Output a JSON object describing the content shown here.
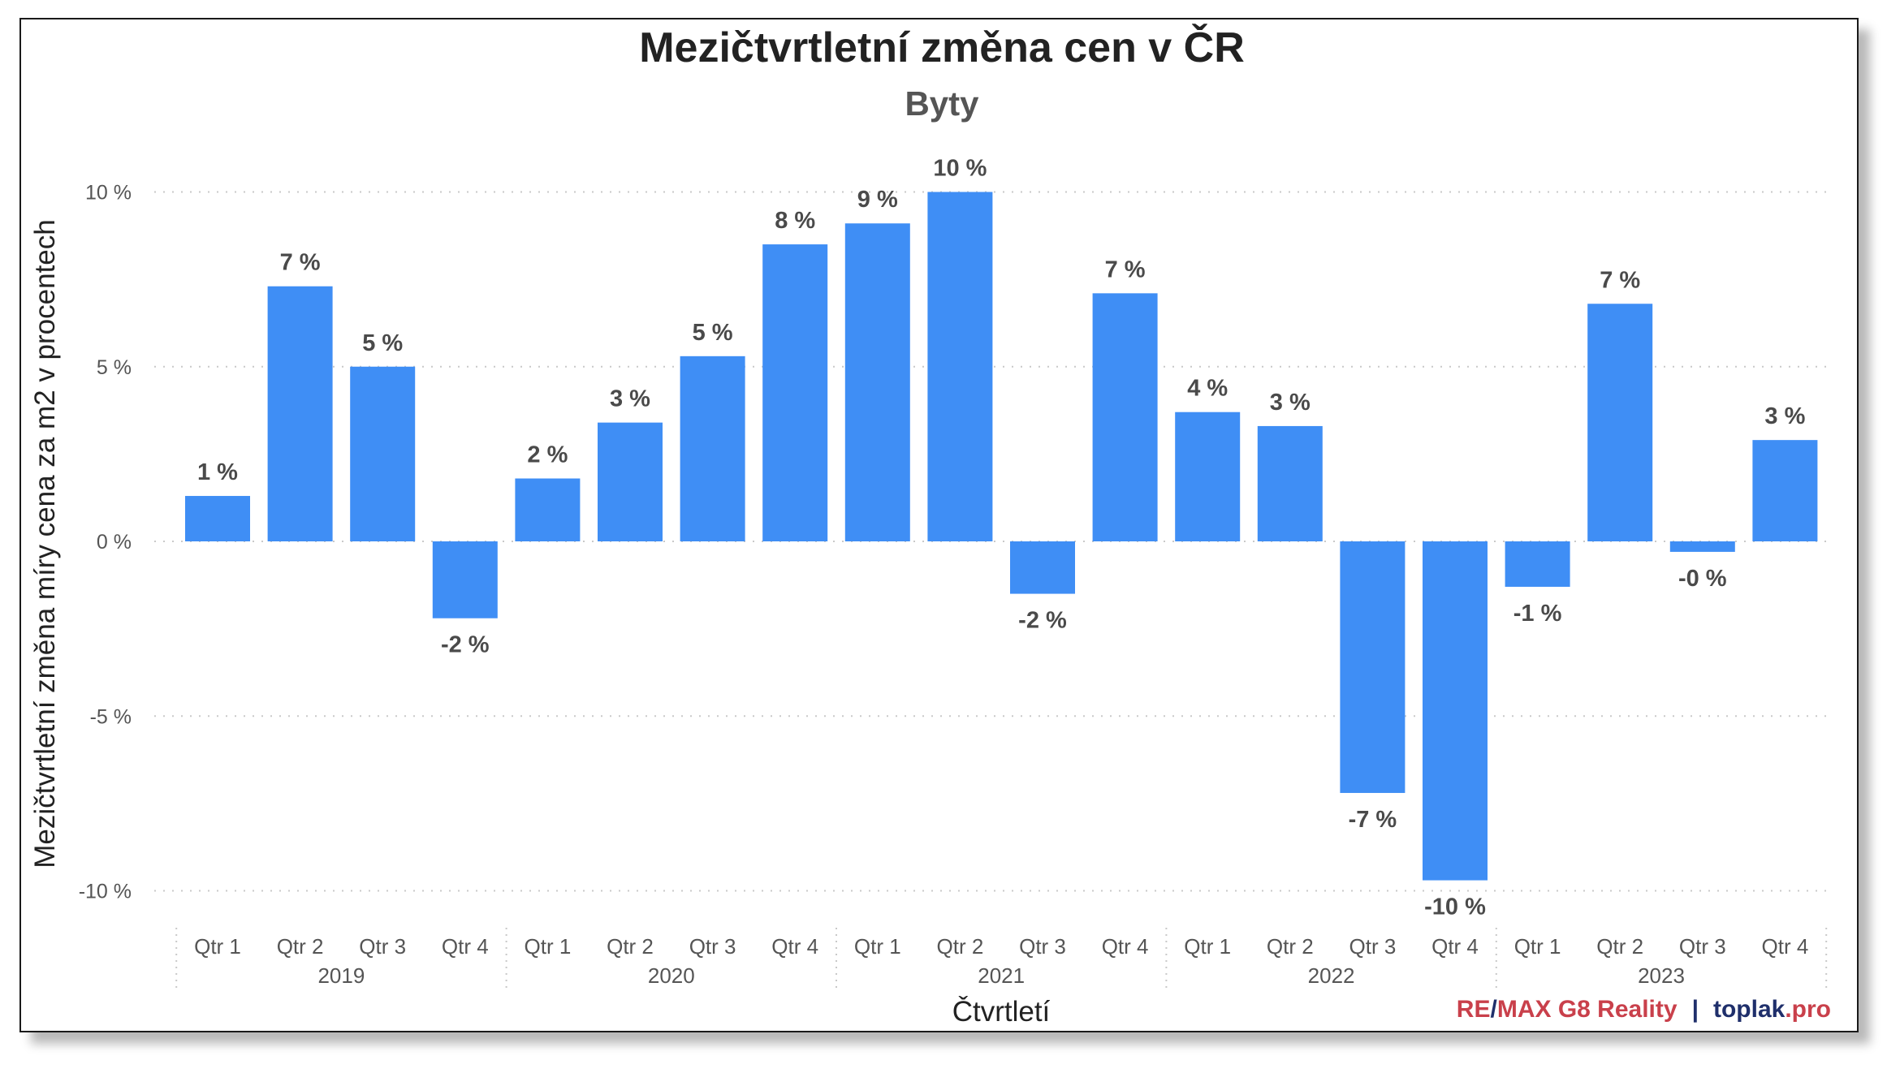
{
  "chart_data": {
    "type": "bar",
    "title": "Mezičtvrtletní změna cen v ČR",
    "subtitle": "Byty",
    "xlabel": "Čtvrtletí",
    "ylabel": "Mezičtvrtletní změna míry cena za m2 v procentech",
    "ylim": [
      -10,
      10
    ],
    "yticks": [
      10,
      5,
      0,
      -5,
      -10
    ],
    "ytick_labels": [
      "10 %",
      "5 %",
      "0 %",
      "-5 %",
      "-10 %"
    ],
    "years": [
      "2019",
      "2020",
      "2021",
      "2022",
      "2023"
    ],
    "categories": [
      "Qtr 1",
      "Qtr 2",
      "Qtr 3",
      "Qtr 4",
      "Qtr 1",
      "Qtr 2",
      "Qtr 3",
      "Qtr 4",
      "Qtr 1",
      "Qtr 2",
      "Qtr 3",
      "Qtr 4",
      "Qtr 1",
      "Qtr 2",
      "Qtr 3",
      "Qtr 4",
      "Qtr 1",
      "Qtr 2",
      "Qtr 3",
      "Qtr 4"
    ],
    "values": [
      1.3,
      7.3,
      5.0,
      -2.2,
      1.8,
      3.4,
      5.3,
      8.5,
      9.1,
      10.0,
      -1.5,
      7.1,
      3.7,
      3.3,
      -7.2,
      -9.7,
      -1.3,
      6.8,
      -0.3,
      2.9
    ],
    "data_labels": [
      "1 %",
      "7 %",
      "5 %",
      "-2 %",
      "2 %",
      "3 %",
      "5 %",
      "8 %",
      "9 %",
      "10 %",
      "-2 %",
      "7 %",
      "4 %",
      "3 %",
      "-7 %",
      "-10 %",
      "-1 %",
      "7 %",
      "-0 %",
      "3 %"
    ],
    "bar_color": "#3f8ef5",
    "grid": true
  },
  "credit": {
    "re": "RE",
    "slash": "/",
    "max": "MAX G8 Reality",
    "sep": "|",
    "toplak": "toplak",
    "pro": ".pro"
  }
}
